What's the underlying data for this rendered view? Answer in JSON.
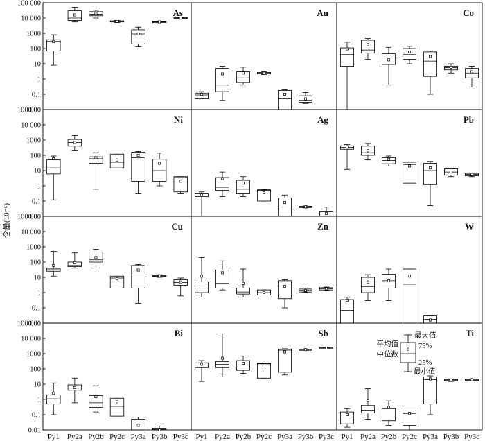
{
  "chart_data": {
    "type": "box",
    "y_scale": "log",
    "ylim": [
      0.01,
      100000
    ],
    "yticks": [
      "100 000",
      "10 000",
      "1000",
      "100",
      "10",
      "1",
      "0.1",
      "0.01"
    ],
    "ylabel": "含量(10⁻⁶)",
    "categories": [
      "Py1",
      "Py2a",
      "Py2b",
      "Py2c",
      "Py3a",
      "Py3b",
      "Py3c"
    ],
    "legend": {
      "max": "最大值",
      "q3": "75%",
      "mean": "平均值",
      "median": "中位数",
      "q1": "25%",
      "min": "最小值"
    },
    "panels": [
      {
        "element": "As",
        "boxes": [
          {
            "min": 8,
            "q1": 70,
            "median": 290,
            "q3": 380,
            "max": 800,
            "mean": 280
          },
          {
            "min": 5500,
            "q1": 7000,
            "median": 10000,
            "q3": 30000,
            "max": 50000,
            "mean": 16000
          },
          {
            "min": 10000,
            "q1": 14000,
            "median": 18000,
            "q3": 26000,
            "max": 32000,
            "mean": 20000
          },
          {
            "min": 5000,
            "q1": 5500,
            "median": 6000,
            "q3": 6500,
            "max": 7000,
            "mean": 6000
          },
          {
            "min": 130,
            "q1": 200,
            "median": 900,
            "q3": 1700,
            "max": 2500,
            "mean": 900
          },
          {
            "min": 5000,
            "q1": 5200,
            "median": 5600,
            "q3": 5900,
            "max": 6200,
            "mean": 5600
          },
          {
            "min": 9000,
            "q1": 9300,
            "median": 9800,
            "q3": 10500,
            "max": 11000,
            "mean": 9800
          }
        ]
      },
      {
        "element": "Au",
        "boxes": [
          {
            "min": 0.05,
            "q1": 0.05,
            "median": 0.09,
            "q3": 0.12,
            "max": 0.15,
            "mean": 0.1
          },
          {
            "min": 0.04,
            "q1": 0.15,
            "median": 0.4,
            "q3": 5,
            "max": 7,
            "mean": 2.2
          },
          {
            "min": 0.4,
            "q1": 0.6,
            "median": 1.2,
            "q3": 3,
            "max": 6,
            "mean": 2.5
          },
          {
            "min": 2,
            "q1": 2.2,
            "median": 2.4,
            "q3": 2.7,
            "max": 3,
            "mean": 2.4
          },
          {
            "min": 0.01,
            "q1": 0.01,
            "median": 0.05,
            "q3": 0.18,
            "max": 0.2,
            "mean": 0.1
          },
          {
            "min": 0.025,
            "q1": 0.03,
            "median": 0.04,
            "q3": 0.08,
            "max": 0.13,
            "mean": 0.05
          },
          null
        ]
      },
      {
        "element": "Co",
        "boxes": [
          {
            "min": 0.01,
            "q1": 7,
            "median": 40,
            "q3": 110,
            "max": 260,
            "mean": 95
          },
          {
            "min": 20,
            "q1": 50,
            "median": 80,
            "q3": 350,
            "max": 450,
            "mean": 180
          },
          {
            "min": 0.4,
            "q1": 9,
            "median": 18,
            "q3": 45,
            "max": 120,
            "mean": 18
          },
          {
            "min": 10,
            "q1": 20,
            "median": 40,
            "q3": 100,
            "max": 140,
            "mean": 60
          },
          {
            "min": 0.1,
            "q1": 1.5,
            "median": 15,
            "q3": 60,
            "max": 70,
            "mean": 30
          },
          {
            "min": 2.5,
            "q1": 4,
            "median": 5.5,
            "q3": 7,
            "max": 10,
            "mean": 6
          },
          {
            "min": 0.3,
            "q1": 1.2,
            "median": 2.5,
            "q3": 5,
            "max": 7,
            "mean": 3
          }
        ]
      },
      {
        "element": "Ni",
        "boxes": [
          {
            "min": 0.12,
            "q1": 6,
            "median": 15,
            "q3": 50,
            "max": 90,
            "mean": 60
          },
          {
            "min": 200,
            "q1": 400,
            "median": 700,
            "q3": 1100,
            "max": 2000,
            "mean": 700
          },
          {
            "min": 0.6,
            "q1": 30,
            "median": 60,
            "q3": 80,
            "max": 150,
            "mean": 70
          },
          {
            "min": 15,
            "q1": 15,
            "median": 35,
            "q3": 120,
            "max": 120,
            "mean": 50
          },
          {
            "min": 0.3,
            "q1": 2,
            "median": 70,
            "q3": 160,
            "max": 180,
            "mean": 100
          },
          {
            "min": 1,
            "q1": 2,
            "median": 10,
            "q3": 55,
            "max": 140,
            "mean": 30
          },
          {
            "min": 0.3,
            "q1": 0.4,
            "median": 3.5,
            "q3": 4,
            "max": 4,
            "mean": 2
          }
        ]
      },
      {
        "element": "Ag",
        "boxes": [
          {
            "min": 0.01,
            "q1": 0.2,
            "median": 0.22,
            "q3": 0.3,
            "max": 0.4,
            "mean": 0.25
          },
          {
            "min": 0.2,
            "q1": 0.5,
            "median": 0.8,
            "q3": 3.5,
            "max": 8,
            "mean": 3
          },
          {
            "min": 0.2,
            "q1": 0.3,
            "median": 0.6,
            "q3": 2.3,
            "max": 4,
            "mean": 1.5
          },
          {
            "min": 0.1,
            "q1": 0.1,
            "median": 0.5,
            "q3": 0.55,
            "max": 0.6,
            "mean": 0.35
          },
          {
            "min": 0.01,
            "q1": 0.01,
            "median": 0.03,
            "q3": 0.16,
            "max": 0.25,
            "mean": 0.08
          },
          {
            "min": 0.036,
            "q1": 0.038,
            "median": 0.042,
            "q3": 0.046,
            "max": 0.048,
            "mean": 0.042
          },
          {
            "min": 0.01,
            "q1": 0.01,
            "median": 0.01,
            "q3": 0.02,
            "max": 0.04,
            "mean": 0.015
          }
        ]
      },
      {
        "element": "Pb",
        "boxes": [
          {
            "min": 12,
            "q1": 250,
            "median": 330,
            "q3": 420,
            "max": 500,
            "mean": 350
          },
          {
            "min": 50,
            "q1": 100,
            "median": 150,
            "q3": 400,
            "max": 600,
            "mean": 200
          },
          {
            "min": 20,
            "q1": 28,
            "median": 45,
            "q3": 70,
            "max": 90,
            "mean": 55
          },
          {
            "min": 1.5,
            "q1": 1.5,
            "median": 25,
            "q3": 35,
            "max": 35,
            "mean": 20
          },
          {
            "min": 0.05,
            "q1": 1.2,
            "median": 10,
            "q3": 30,
            "max": 40,
            "mean": 15
          },
          {
            "min": 4,
            "q1": 5,
            "median": 8,
            "q3": 13,
            "max": 14,
            "mean": 8
          },
          {
            "min": 4,
            "q1": 4.5,
            "median": 5.5,
            "q3": 6.5,
            "max": 7,
            "mean": 5.5
          }
        ]
      },
      {
        "element": "Cu",
        "boxes": [
          {
            "min": 12,
            "q1": 25,
            "median": 35,
            "q3": 40,
            "max": 500,
            "mean": 60
          },
          {
            "min": 40,
            "q1": 50,
            "median": 60,
            "q3": 100,
            "max": 400,
            "mean": 90
          },
          {
            "min": 30,
            "q1": 100,
            "median": 140,
            "q3": 450,
            "max": 700,
            "mean": 200
          },
          {
            "min": 2,
            "q1": 2,
            "median": 9,
            "q3": 12,
            "max": 12,
            "mean": 8
          },
          {
            "min": 0.2,
            "q1": 2,
            "median": 20,
            "q3": 60,
            "max": 70,
            "mean": 30
          },
          {
            "min": 10,
            "q1": 11,
            "median": 12,
            "q3": 13,
            "max": 15,
            "mean": 12
          },
          {
            "min": 0.6,
            "q1": 3,
            "median": 4.5,
            "q3": 7,
            "max": 9,
            "mean": 5
          }
        ]
      },
      {
        "element": "Zn",
        "boxes": [
          {
            "min": 0.5,
            "q1": 1,
            "median": 2,
            "q3": 5,
            "max": 200,
            "mean": 12
          },
          {
            "min": 1.5,
            "q1": 2,
            "median": 4,
            "q3": 30,
            "max": 120,
            "mean": 20
          },
          {
            "min": 0.5,
            "q1": 0.8,
            "median": 1.1,
            "q3": 2,
            "max": 35,
            "mean": 4
          },
          {
            "min": 0.7,
            "q1": 0.7,
            "median": 1,
            "q3": 1.5,
            "max": 1.5,
            "mean": 1
          },
          {
            "min": 0.1,
            "q1": 0.4,
            "median": 2,
            "q3": 6,
            "max": 7,
            "mean": 2.5
          },
          {
            "min": 1,
            "q1": 1.1,
            "median": 1.4,
            "q3": 1.7,
            "max": 2,
            "mean": 1.4
          },
          {
            "min": 1.4,
            "q1": 1.5,
            "median": 1.8,
            "q3": 2.1,
            "max": 2.3,
            "mean": 1.8
          }
        ]
      },
      {
        "element": "W",
        "boxes": [
          {
            "min": 0.01,
            "q1": 0.01,
            "median": 0.07,
            "q3": 0.35,
            "max": 0.5,
            "mean": 0.32
          },
          {
            "min": 0.3,
            "q1": 1,
            "median": 2.5,
            "q3": 10,
            "max": 15,
            "mean": 5
          },
          {
            "min": 0.3,
            "q1": 2,
            "median": 6,
            "q3": 16,
            "max": 35,
            "mean": 6
          },
          {
            "min": 0.01,
            "q1": 0.01,
            "median": 3.5,
            "q3": 35,
            "max": 35,
            "mean": 12
          },
          {
            "min": 0.01,
            "q1": 0.01,
            "median": 0.018,
            "q3": 0.03,
            "max": 0.03,
            "mean": 0.016
          },
          null,
          null
        ]
      },
      {
        "element": "Bi",
        "boxes": [
          {
            "min": 0.1,
            "q1": 0.5,
            "median": 1.1,
            "q3": 2,
            "max": 12,
            "mean": 2.5
          },
          {
            "min": 0.6,
            "q1": 4,
            "median": 5.5,
            "q3": 9,
            "max": 25,
            "mean": 6
          },
          {
            "min": 0.15,
            "q1": 0.3,
            "median": 0.6,
            "q3": 1.8,
            "max": 8,
            "mean": 1.5
          },
          {
            "min": 0.08,
            "q1": 0.08,
            "median": 0.35,
            "q3": 1.2,
            "max": 1.2,
            "mean": 0.7
          },
          {
            "min": 0.01,
            "q1": 0.01,
            "median": 0.01,
            "q3": 0.05,
            "max": 0.07,
            "mean": 0.02
          },
          {
            "min": 0.01,
            "q1": 0.01,
            "median": 0.011,
            "q3": 0.013,
            "max": 0.018,
            "mean": 0.01
          },
          null
        ]
      },
      {
        "element": "Sb",
        "boxes": [
          {
            "min": 15,
            "q1": 120,
            "median": 180,
            "q3": 250,
            "max": 350,
            "mean": 200
          },
          {
            "min": 30,
            "q1": 120,
            "median": 200,
            "q3": 300,
            "max": 20000,
            "mean": 500
          },
          {
            "min": 50,
            "q1": 80,
            "median": 130,
            "q3": 350,
            "max": 700,
            "mean": 230
          },
          {
            "min": 25,
            "q1": 25,
            "median": 210,
            "q3": 230,
            "max": 230,
            "mean": 150
          },
          {
            "min": 40,
            "q1": 60,
            "median": 1700,
            "q3": 2000,
            "max": 2100,
            "mean": 1300
          },
          {
            "min": 1700,
            "q1": 1750,
            "median": 1850,
            "q3": 1950,
            "max": 2000,
            "mean": 1850
          },
          {
            "min": 2100,
            "q1": 2200,
            "median": 2300,
            "q3": 2400,
            "max": 2500,
            "mean": 2300
          }
        ]
      },
      {
        "element": "Ti",
        "boxes": [
          {
            "min": 0.015,
            "q1": 0.025,
            "median": 0.045,
            "q3": 0.15,
            "max": 0.25,
            "mean": 0.1
          },
          {
            "min": 0.05,
            "q1": 0.13,
            "median": 0.18,
            "q3": 0.4,
            "max": 5,
            "mean": 0.8
          },
          {
            "min": 0.02,
            "q1": 0.04,
            "median": 0.07,
            "q3": 0.25,
            "max": 0.8,
            "mean": 0.3
          },
          {
            "min": 0.01,
            "q1": 0.02,
            "median": 0.12,
            "q3": 0.2,
            "max": 0.2,
            "mean": 0.12
          },
          {
            "min": 0.1,
            "q1": 0.5,
            "median": 20,
            "q3": 30,
            "max": 35,
            "mean": 22
          },
          {
            "min": 15,
            "q1": 17,
            "median": 19,
            "q3": 21,
            "max": 22,
            "mean": 19
          },
          {
            "min": 18,
            "q1": 19,
            "median": 20,
            "q3": 21,
            "max": 22,
            "mean": 20
          }
        ]
      }
    ]
  }
}
